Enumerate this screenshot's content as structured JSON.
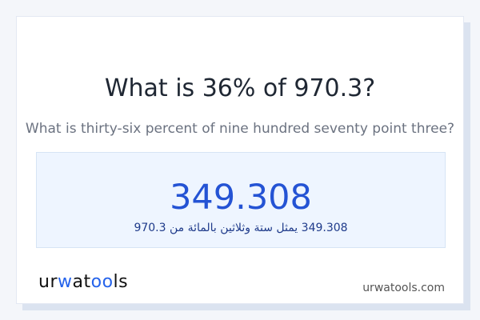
{
  "header": {
    "title": "What is 36% of 970.3?",
    "subtitle": "What is thirty-six percent of nine hundred seventy point three?"
  },
  "result": {
    "value": "349.308",
    "arabic_text": "349.308 يمثل ستة وثلاثين بالمائة من 970.3"
  },
  "footer": {
    "logo_text": "urwatools",
    "site": "urwatools.com"
  },
  "colors": {
    "accent": "#2453d4",
    "result_bg": "#eef5ff"
  }
}
